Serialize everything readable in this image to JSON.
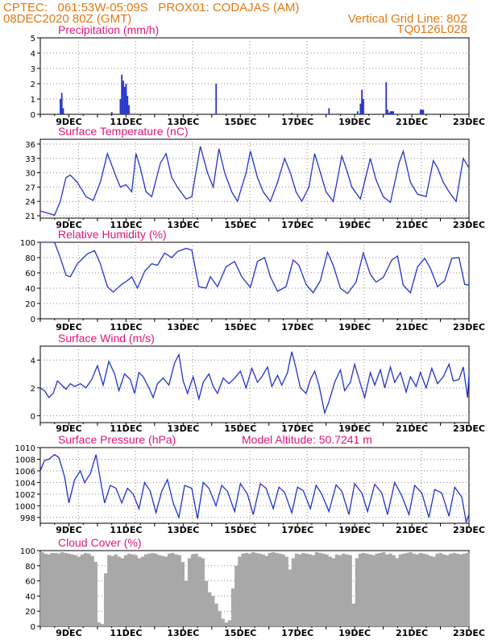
{
  "header": {
    "line1": "CPTEC:   061:53W-05:09S   PROX01: CODAJAS (AM)",
    "line2_left": "08DEC2020 80Z (GMT)",
    "line2_right": "Vertical Grid Line: 80Z",
    "line3_right": "TQ0126L028"
  },
  "colors": {
    "line": "#2233cc",
    "bar": "#2233cc",
    "cloud": "#a8a8a8",
    "title": "#e0157a",
    "header": "#e07a14"
  },
  "x_tick_labels": [
    "9DEC",
    "11DEC",
    "13DEC",
    "15DEC",
    "17DEC",
    "19DEC",
    "21DEC",
    "23DEC"
  ],
  "model_altitude": "Model Altitude: 50.7241  m",
  "chart_data": [
    {
      "type": "bar",
      "title": "Precipitation (mm/h)",
      "x_units": "days since 08DEC2020 00Z",
      "ylim": [
        0,
        5
      ],
      "yticks": [
        "0",
        "1",
        "2",
        "3",
        "4",
        "5"
      ],
      "grid": true,
      "x": [
        0.7,
        0.75,
        0.8,
        2.5,
        2.8,
        2.85,
        2.9,
        2.95,
        3.0,
        3.05,
        3.1,
        6.15,
        8.8,
        10.1,
        11.1,
        11.2,
        11.25,
        11.3,
        12.1,
        12.15,
        12.2,
        12.25,
        12.3,
        12.35,
        13.3,
        13.35,
        13.4
      ],
      "values": [
        1.0,
        1.4,
        0.4,
        0.15,
        1.0,
        2.6,
        2.2,
        1.8,
        2.0,
        1.2,
        0.6,
        2.0,
        0.1,
        0.4,
        0.2,
        0.7,
        1.6,
        1.0,
        2.1,
        0.3,
        0.1,
        0.2,
        0.2,
        0.2,
        0.3,
        0.3,
        0.3
      ]
    },
    {
      "type": "line",
      "title": "Surface Temperature (nC)",
      "x_units": "days since 08DEC2020 00Z",
      "ylim": [
        20.5,
        37
      ],
      "yticks": [
        "21",
        "24",
        "27",
        "30",
        "33",
        "36"
      ],
      "grid": true,
      "points": [
        [
          0,
          22
        ],
        [
          0.4,
          21.3
        ],
        [
          0.5,
          21.1
        ],
        [
          0.7,
          24
        ],
        [
          0.9,
          29
        ],
        [
          1.05,
          29.5
        ],
        [
          1.3,
          28
        ],
        [
          1.6,
          25
        ],
        [
          1.85,
          24.2
        ],
        [
          2.1,
          28
        ],
        [
          2.35,
          34
        ],
        [
          2.6,
          30
        ],
        [
          2.8,
          27
        ],
        [
          3.0,
          27.5
        ],
        [
          3.2,
          26
        ],
        [
          3.35,
          34
        ],
        [
          3.5,
          31
        ],
        [
          3.7,
          26
        ],
        [
          3.9,
          25
        ],
        [
          4.2,
          32
        ],
        [
          4.4,
          34
        ],
        [
          4.6,
          29
        ],
        [
          4.8,
          27
        ],
        [
          5.1,
          24.5
        ],
        [
          5.3,
          25
        ],
        [
          5.6,
          35.5
        ],
        [
          5.85,
          30
        ],
        [
          6.05,
          27
        ],
        [
          6.25,
          35
        ],
        [
          6.45,
          30
        ],
        [
          6.7,
          26
        ],
        [
          6.9,
          24
        ],
        [
          7.2,
          30
        ],
        [
          7.35,
          34.5
        ],
        [
          7.6,
          29
        ],
        [
          7.8,
          26
        ],
        [
          8.05,
          24
        ],
        [
          8.3,
          28
        ],
        [
          8.55,
          33
        ],
        [
          8.75,
          30
        ],
        [
          8.95,
          26
        ],
        [
          9.15,
          24
        ],
        [
          9.4,
          27
        ],
        [
          9.6,
          34
        ],
        [
          9.8,
          30
        ],
        [
          10.0,
          26
        ],
        [
          10.25,
          24
        ],
        [
          10.55,
          33.5
        ],
        [
          10.75,
          30
        ],
        [
          10.9,
          27
        ],
        [
          11.2,
          24.5
        ],
        [
          11.55,
          33
        ],
        [
          11.75,
          28.5
        ],
        [
          12.0,
          25
        ],
        [
          12.25,
          23.8
        ],
        [
          12.55,
          32
        ],
        [
          12.7,
          34.5
        ],
        [
          12.95,
          28
        ],
        [
          13.2,
          25.5
        ],
        [
          13.5,
          25
        ],
        [
          13.75,
          32.5
        ],
        [
          13.9,
          31
        ],
        [
          14.1,
          28
        ],
        [
          14.3,
          26
        ],
        [
          14.55,
          24
        ],
        [
          14.8,
          33
        ],
        [
          15.0,
          31
        ]
      ]
    },
    {
      "type": "line",
      "title": "Relative Humidity (%)",
      "x_units": "days since 08DEC2020 00Z",
      "ylim": [
        0,
        100
      ],
      "yticks": [
        "0",
        "20",
        "40",
        "60",
        "80",
        "100"
      ],
      "grid": true,
      "points": [
        [
          0,
          100
        ],
        [
          0.5,
          100
        ],
        [
          0.7,
          80
        ],
        [
          0.9,
          57
        ],
        [
          1.05,
          55
        ],
        [
          1.3,
          72
        ],
        [
          1.65,
          85
        ],
        [
          1.9,
          89
        ],
        [
          2.1,
          72
        ],
        [
          2.35,
          42
        ],
        [
          2.55,
          35
        ],
        [
          2.85,
          45
        ],
        [
          3.05,
          50
        ],
        [
          3.2,
          55
        ],
        [
          3.4,
          40
        ],
        [
          3.65,
          62
        ],
        [
          3.9,
          72
        ],
        [
          4.1,
          70
        ],
        [
          4.35,
          86
        ],
        [
          4.6,
          80
        ],
        [
          4.8,
          88
        ],
        [
          5.1,
          92
        ],
        [
          5.3,
          90
        ],
        [
          5.55,
          42
        ],
        [
          5.8,
          40
        ],
        [
          5.95,
          55
        ],
        [
          6.2,
          42
        ],
        [
          6.5,
          68
        ],
        [
          6.8,
          75
        ],
        [
          7.05,
          55
        ],
        [
          7.35,
          41
        ],
        [
          7.6,
          75
        ],
        [
          7.85,
          80
        ],
        [
          8.05,
          55
        ],
        [
          8.3,
          36
        ],
        [
          8.6,
          42
        ],
        [
          8.85,
          77
        ],
        [
          9.05,
          70
        ],
        [
          9.3,
          45
        ],
        [
          9.55,
          34
        ],
        [
          9.8,
          50
        ],
        [
          10.05,
          87
        ],
        [
          10.25,
          70
        ],
        [
          10.5,
          40
        ],
        [
          10.75,
          33
        ],
        [
          11.05,
          48
        ],
        [
          11.3,
          86
        ],
        [
          11.55,
          58
        ],
        [
          11.75,
          48
        ],
        [
          12.0,
          54
        ],
        [
          12.3,
          77
        ],
        [
          12.5,
          82
        ],
        [
          12.7,
          44
        ],
        [
          12.95,
          34
        ],
        [
          13.2,
          68
        ],
        [
          13.45,
          79
        ],
        [
          13.65,
          66
        ],
        [
          13.9,
          42
        ],
        [
          14.15,
          50
        ],
        [
          14.4,
          79
        ],
        [
          14.65,
          80
        ],
        [
          14.85,
          45
        ],
        [
          15.0,
          44
        ]
      ]
    },
    {
      "type": "line",
      "title": "Surface Wind (m/s)",
      "x_units": "days since 08DEC2020 00Z",
      "ylim": [
        -0.5,
        5
      ],
      "yticks": [
        "0",
        "2",
        "4"
      ],
      "grid": true,
      "points": [
        [
          0,
          2
        ],
        [
          0.15,
          1.8
        ],
        [
          0.3,
          1.3
        ],
        [
          0.45,
          1.6
        ],
        [
          0.6,
          2.5
        ],
        [
          0.75,
          2.2
        ],
        [
          0.9,
          1.9
        ],
        [
          1.05,
          2.3
        ],
        [
          1.2,
          2.1
        ],
        [
          1.4,
          2.3
        ],
        [
          1.6,
          2.0
        ],
        [
          1.8,
          2.6
        ],
        [
          2.0,
          3.6
        ],
        [
          2.2,
          2.2
        ],
        [
          2.4,
          3.9
        ],
        [
          2.6,
          3.0
        ],
        [
          2.75,
          1.8
        ],
        [
          2.95,
          3.0
        ],
        [
          3.15,
          2.6
        ],
        [
          3.3,
          1.6
        ],
        [
          3.45,
          3.1
        ],
        [
          3.6,
          2.8
        ],
        [
          3.8,
          2.0
        ],
        [
          3.95,
          1.3
        ],
        [
          4.1,
          2.3
        ],
        [
          4.3,
          2.7
        ],
        [
          4.5,
          2.2
        ],
        [
          4.7,
          3.8
        ],
        [
          4.85,
          4.4
        ],
        [
          5.0,
          2.5
        ],
        [
          5.15,
          1.6
        ],
        [
          5.35,
          2.8
        ],
        [
          5.55,
          1.2
        ],
        [
          5.7,
          2.4
        ],
        [
          5.9,
          3.0
        ],
        [
          6.05,
          2.1
        ],
        [
          6.2,
          1.6
        ],
        [
          6.4,
          2.7
        ],
        [
          6.6,
          2.3
        ],
        [
          6.8,
          2.7
        ],
        [
          7.0,
          3.2
        ],
        [
          7.2,
          2.0
        ],
        [
          7.4,
          3.4
        ],
        [
          7.6,
          2.4
        ],
        [
          7.75,
          2.8
        ],
        [
          7.95,
          3.5
        ],
        [
          8.1,
          2.1
        ],
        [
          8.3,
          2.9
        ],
        [
          8.45,
          2.2
        ],
        [
          8.65,
          3.1
        ],
        [
          8.8,
          4.6
        ],
        [
          8.95,
          3.4
        ],
        [
          9.1,
          2.0
        ],
        [
          9.3,
          1.6
        ],
        [
          9.45,
          2.6
        ],
        [
          9.6,
          3.2
        ],
        [
          9.75,
          2.2
        ],
        [
          9.95,
          0.2
        ],
        [
          10.1,
          1.0
        ],
        [
          10.3,
          2.4
        ],
        [
          10.5,
          3.3
        ],
        [
          10.65,
          1.8
        ],
        [
          10.85,
          2.4
        ],
        [
          11.0,
          3.7
        ],
        [
          11.2,
          2.3
        ],
        [
          11.35,
          1.3
        ],
        [
          11.55,
          3.1
        ],
        [
          11.7,
          2.2
        ],
        [
          11.9,
          3.3
        ],
        [
          12.05,
          2.0
        ],
        [
          12.25,
          3.5
        ],
        [
          12.4,
          2.4
        ],
        [
          12.6,
          3.1
        ],
        [
          12.8,
          1.7
        ],
        [
          12.95,
          2.8
        ],
        [
          13.15,
          2.1
        ],
        [
          13.3,
          3.1
        ],
        [
          13.5,
          2.0
        ],
        [
          13.7,
          3.4
        ],
        [
          13.9,
          2.3
        ],
        [
          14.1,
          2.8
        ],
        [
          14.3,
          3.7
        ],
        [
          14.45,
          2.5
        ],
        [
          14.65,
          2.6
        ],
        [
          14.8,
          3.5
        ],
        [
          14.95,
          1.3
        ],
        [
          15.0,
          3.0
        ]
      ]
    },
    {
      "type": "line",
      "title": "Surface Pressure (hPa)",
      "x_units": "days since 08DEC2020 00Z",
      "ylim": [
        997,
        1010
      ],
      "yticks": [
        "998",
        "1000",
        "1002",
        "1004",
        "1006",
        "1008",
        "1010"
      ],
      "grid": true,
      "points": [
        [
          0,
          1006
        ],
        [
          0.15,
          1007.8
        ],
        [
          0.3,
          1008
        ],
        [
          0.5,
          1008.8
        ],
        [
          0.65,
          1008.3
        ],
        [
          0.85,
          1005
        ],
        [
          1.0,
          1000.5
        ],
        [
          1.2,
          1004.5
        ],
        [
          1.4,
          1006
        ],
        [
          1.55,
          1004
        ],
        [
          1.75,
          1005.5
        ],
        [
          1.95,
          1008.8
        ],
        [
          2.1,
          1004.5
        ],
        [
          2.25,
          1000.5
        ],
        [
          2.45,
          1003.5
        ],
        [
          2.65,
          1003
        ],
        [
          2.85,
          1000.5
        ],
        [
          3.05,
          1003
        ],
        [
          3.25,
          1002
        ],
        [
          3.45,
          999.5
        ],
        [
          3.65,
          1004
        ],
        [
          3.85,
          1002.5
        ],
        [
          4.05,
          998.8
        ],
        [
          4.25,
          1002.5
        ],
        [
          4.45,
          1004.5
        ],
        [
          4.65,
          1000.5
        ],
        [
          4.85,
          998
        ],
        [
          5.05,
          1003.5
        ],
        [
          5.3,
          1003
        ],
        [
          5.5,
          997.8
        ],
        [
          5.7,
          1004
        ],
        [
          5.9,
          1003
        ],
        [
          6.15,
          1000
        ],
        [
          6.35,
          1003.5
        ],
        [
          6.55,
          1002.5
        ],
        [
          6.8,
          999
        ],
        [
          7.0,
          1003.8
        ],
        [
          7.25,
          1002
        ],
        [
          7.45,
          998.5
        ],
        [
          7.7,
          1003.8
        ],
        [
          7.9,
          1003
        ],
        [
          8.15,
          999.5
        ],
        [
          8.35,
          1003.2
        ],
        [
          8.55,
          1002.3
        ],
        [
          8.8,
          998.8
        ],
        [
          9.0,
          1003.2
        ],
        [
          9.2,
          1002.6
        ],
        [
          9.45,
          999.5
        ],
        [
          9.65,
          1003.5
        ],
        [
          9.85,
          1002
        ],
        [
          10.1,
          999
        ],
        [
          10.35,
          1003.6
        ],
        [
          10.55,
          1002.5
        ],
        [
          10.8,
          998.5
        ],
        [
          11.0,
          1003.8
        ],
        [
          11.25,
          1002.2
        ],
        [
          11.45,
          999
        ],
        [
          11.7,
          1003.7
        ],
        [
          11.95,
          1002.2
        ],
        [
          12.15,
          998.5
        ],
        [
          12.4,
          1004
        ],
        [
          12.65,
          1001.7
        ],
        [
          12.9,
          998.5
        ],
        [
          13.1,
          1003.5
        ],
        [
          13.35,
          1002.2
        ],
        [
          13.6,
          998
        ],
        [
          13.8,
          1002.8
        ],
        [
          14.05,
          1002.2
        ],
        [
          14.3,
          998.2
        ],
        [
          14.5,
          1003.2
        ],
        [
          14.75,
          1001.5
        ],
        [
          14.9,
          997.2
        ],
        [
          15.0,
          998.5
        ]
      ]
    },
    {
      "type": "bar",
      "title": "Cloud Cover (%)",
      "x_units": "days since 08DEC2020 00Z",
      "ylim": [
        0,
        100
      ],
      "yticks": [
        "0",
        "20",
        "40",
        "60",
        "80",
        "100"
      ],
      "grid": true,
      "values": [
        98,
        96,
        95,
        97,
        97,
        96,
        98,
        97,
        96,
        95,
        94,
        92,
        95,
        97,
        96,
        93,
        85,
        5,
        3,
        70,
        94,
        93,
        95,
        92,
        90,
        94,
        96,
        95,
        94,
        90,
        92,
        95,
        96,
        97,
        96,
        94,
        93,
        92,
        96,
        97,
        95,
        94,
        85,
        60,
        90,
        95,
        96,
        92,
        90,
        60,
        45,
        40,
        30,
        20,
        10,
        5,
        8,
        50,
        80,
        92,
        96,
        97,
        96,
        98,
        97,
        96,
        95,
        93,
        97,
        98,
        97,
        96,
        95,
        92,
        75,
        90,
        96,
        95,
        97,
        96,
        95,
        94,
        98,
        97,
        96,
        95,
        92,
        90,
        95,
        94,
        96,
        95,
        94,
        30,
        90,
        96,
        97,
        96,
        95,
        94,
        96,
        97,
        98,
        95,
        96,
        94,
        90,
        95,
        96,
        97,
        98,
        96,
        95,
        97,
        96,
        95,
        93,
        92,
        96,
        97,
        95,
        94,
        96,
        97,
        96,
        95,
        96,
        97
      ]
    }
  ]
}
